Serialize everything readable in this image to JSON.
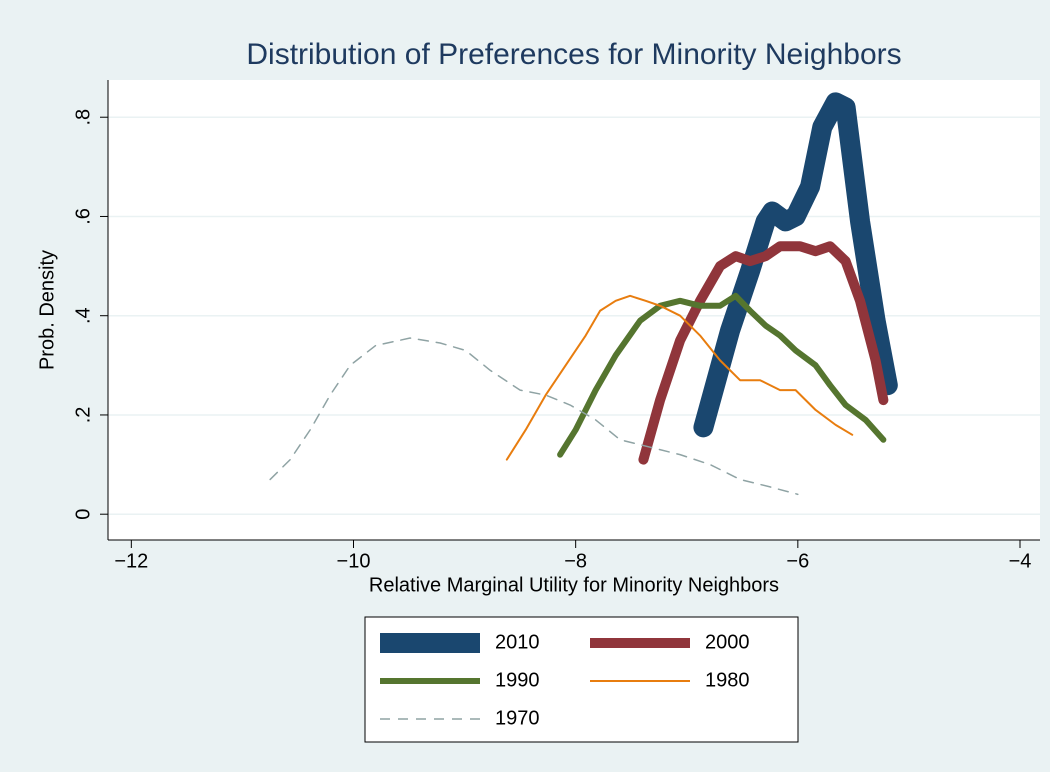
{
  "chart_data": {
    "type": "line",
    "title": "Distribution of Preferences for Minority Neighbors",
    "xlabel": "Relative Marginal Utility for Minority Neighbors",
    "ylabel": "Prob. Density",
    "xlim": [
      -12.21,
      -3.82
    ],
    "ylim": [
      -0.052,
      0.875
    ],
    "xticks": [
      {
        "value": -12,
        "label": "−12"
      },
      {
        "value": -10,
        "label": "−10"
      },
      {
        "value": -8,
        "label": "−8"
      },
      {
        "value": -6,
        "label": "−6"
      },
      {
        "value": -4,
        "label": "−4"
      }
    ],
    "yticks": [
      0,
      {
        "value": 0.2,
        "label": ".2"
      },
      {
        "value": 0.4,
        "label": ".4"
      },
      {
        "value": 0.6,
        "label": ".6"
      },
      {
        "value": 0.8,
        "label": ".8"
      }
    ],
    "grid": true,
    "legend": "bottom",
    "series": [
      {
        "name": "2010",
        "color": "#1a476f",
        "width": 20,
        "x": [
          -6.85,
          -6.61,
          -6.43,
          -6.29,
          -6.23,
          -6.11,
          -6.02,
          -5.89,
          -5.78,
          -5.66,
          -5.57,
          -5.44,
          -5.3,
          -5.19
        ],
        "values": [
          0.175,
          0.37,
          0.49,
          0.59,
          0.61,
          0.59,
          0.6,
          0.66,
          0.78,
          0.83,
          0.82,
          0.59,
          0.39,
          0.26
        ]
      },
      {
        "name": "2000",
        "color": "#90353b",
        "width": 10,
        "x": [
          -7.39,
          -7.24,
          -7.06,
          -6.88,
          -6.7,
          -6.56,
          -6.43,
          -6.29,
          -6.16,
          -5.98,
          -5.84,
          -5.71,
          -5.57,
          -5.44,
          -5.3,
          -5.23
        ],
        "values": [
          0.11,
          0.23,
          0.35,
          0.43,
          0.5,
          0.52,
          0.51,
          0.52,
          0.54,
          0.54,
          0.53,
          0.54,
          0.51,
          0.43,
          0.31,
          0.23
        ]
      },
      {
        "name": "1990",
        "color": "#55752f",
        "width": 6,
        "x": [
          -8.14,
          -8.0,
          -7.82,
          -7.64,
          -7.42,
          -7.24,
          -7.06,
          -6.88,
          -6.7,
          -6.56,
          -6.43,
          -6.29,
          -6.16,
          -6.02,
          -5.84,
          -5.71,
          -5.57,
          -5.39,
          -5.23
        ],
        "values": [
          0.12,
          0.17,
          0.25,
          0.32,
          0.39,
          0.42,
          0.43,
          0.42,
          0.42,
          0.44,
          0.41,
          0.38,
          0.36,
          0.33,
          0.3,
          0.26,
          0.22,
          0.19,
          0.15
        ]
      },
      {
        "name": "1980",
        "color": "#e87d0f",
        "width": 2,
        "x": [
          -8.62,
          -8.45,
          -8.27,
          -8.09,
          -7.91,
          -7.78,
          -7.64,
          -7.51,
          -7.37,
          -7.24,
          -7.06,
          -6.88,
          -6.7,
          -6.52,
          -6.34,
          -6.16,
          -6.02,
          -5.84,
          -5.66,
          -5.51
        ],
        "values": [
          0.11,
          0.17,
          0.24,
          0.3,
          0.36,
          0.41,
          0.43,
          0.44,
          0.43,
          0.42,
          0.4,
          0.36,
          0.31,
          0.27,
          0.27,
          0.25,
          0.25,
          0.21,
          0.18,
          0.16
        ]
      },
      {
        "name": "1970",
        "color": "#8fa3a4",
        "width": 1.5,
        "dash": true,
        "x": [
          -10.75,
          -10.57,
          -10.39,
          -10.21,
          -10.03,
          -9.8,
          -9.49,
          -9.22,
          -8.99,
          -8.77,
          -8.5,
          -8.27,
          -8.05,
          -7.82,
          -7.6,
          -7.33,
          -7.06,
          -6.79,
          -6.52,
          -6.25,
          -6.0
        ],
        "values": [
          0.07,
          0.11,
          0.17,
          0.24,
          0.3,
          0.34,
          0.355,
          0.345,
          0.33,
          0.29,
          0.25,
          0.24,
          0.22,
          0.19,
          0.15,
          0.135,
          0.12,
          0.1,
          0.07,
          0.055,
          0.04
        ]
      }
    ]
  }
}
